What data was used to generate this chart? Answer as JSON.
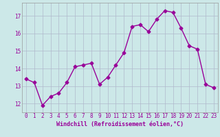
{
  "x": [
    0,
    1,
    2,
    3,
    4,
    5,
    6,
    7,
    8,
    9,
    10,
    11,
    12,
    13,
    14,
    15,
    16,
    17,
    18,
    19,
    20,
    21,
    22,
    23
  ],
  "y": [
    13.4,
    13.2,
    11.9,
    12.4,
    12.6,
    13.2,
    14.1,
    14.2,
    14.3,
    13.1,
    13.5,
    14.2,
    14.9,
    16.4,
    16.5,
    16.1,
    16.8,
    17.3,
    17.2,
    16.3,
    15.3,
    15.1,
    13.1,
    12.9
  ],
  "line_color": "#990099",
  "marker": "D",
  "marker_size": 2.5,
  "line_width": 1.0,
  "bg_color": "#cce8e8",
  "grid_color": "#b0b8cc",
  "xlabel": "Windchill (Refroidissement éolien,°C)",
  "xlabel_color": "#990099",
  "tick_color": "#990099",
  "ylim": [
    11.5,
    17.75
  ],
  "xlim": [
    -0.5,
    23.5
  ],
  "yticks": [
    12,
    13,
    14,
    15,
    16,
    17
  ],
  "xticks": [
    0,
    1,
    2,
    3,
    4,
    5,
    6,
    7,
    8,
    9,
    10,
    11,
    12,
    13,
    14,
    15,
    16,
    17,
    18,
    19,
    20,
    21,
    22,
    23
  ],
  "tick_fontsize": 5.5,
  "xlabel_fontsize": 6.0
}
